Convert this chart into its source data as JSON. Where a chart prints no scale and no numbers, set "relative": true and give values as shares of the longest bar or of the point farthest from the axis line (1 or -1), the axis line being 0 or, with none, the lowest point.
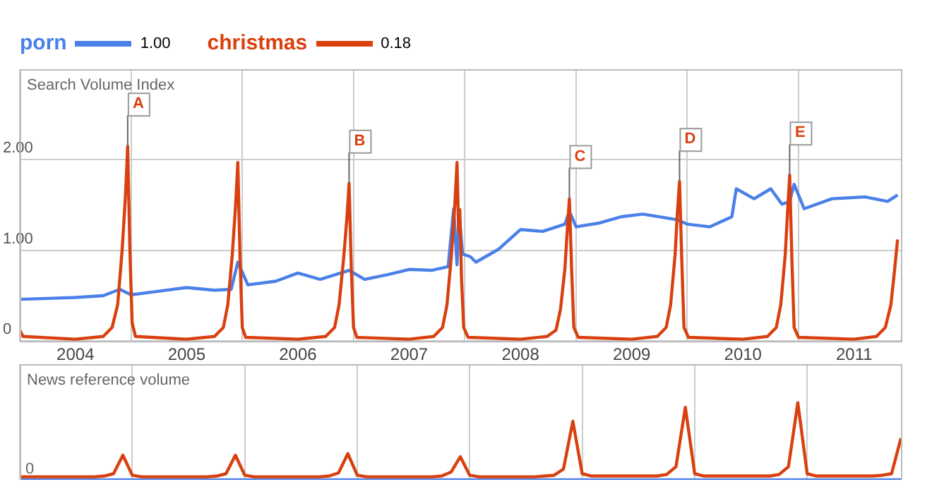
{
  "chart_data": [
    {
      "type": "line",
      "ylabel": "Search Volume Index",
      "legend": "top left",
      "grid": true,
      "marker": "none",
      "line_style": "solid",
      "xlim": [
        2004,
        2011.92
      ],
      "xticks": [
        {
          "value": 2004,
          "label": null
        },
        {
          "value": 2004.5,
          "label": "2004"
        },
        {
          "value": 2005,
          "label": null
        },
        {
          "value": 2005.5,
          "label": "2005"
        },
        {
          "value": 2006,
          "label": null
        },
        {
          "value": 2006.5,
          "label": "2006"
        },
        {
          "value": 2007,
          "label": null
        },
        {
          "value": 2007.5,
          "label": "2007"
        },
        {
          "value": 2008,
          "label": null
        },
        {
          "value": 2008.5,
          "label": "2008"
        },
        {
          "value": 2009,
          "label": null
        },
        {
          "value": 2009.5,
          "label": "2009"
        },
        {
          "value": 2010,
          "label": null
        },
        {
          "value": 2010.5,
          "label": "2010"
        },
        {
          "value": 2011,
          "label": null
        },
        {
          "value": 2011.5,
          "label": "2011"
        }
      ],
      "ylim": [
        0,
        3
      ],
      "yticks": [
        0,
        {
          "value": 1,
          "label": "1.00"
        },
        {
          "value": 2,
          "label": "2.00"
        }
      ],
      "annotations": [
        "1.00",
        "0.18",
        {
          "text": "A",
          "x": 2004.97,
          "y": 2.15
        },
        {
          "text": "B",
          "x": 2006.96,
          "y": 1.74
        },
        {
          "text": "C",
          "x": 2008.94,
          "y": 1.57
        },
        {
          "text": "D",
          "x": 2009.93,
          "y": 1.76
        },
        {
          "text": "E",
          "x": 2010.92,
          "y": 1.83
        }
      ],
      "series": [
        {
          "name": "porn",
          "color": "#4a80e8",
          "x": [
            2004,
            2004.25,
            2004.5,
            2004.75,
            2004.9,
            2005,
            2005.25,
            2005.5,
            2005.75,
            2005.9,
            2005.96,
            2006.05,
            2006.3,
            2006.5,
            2006.7,
            2006.96,
            2007.1,
            2007.3,
            2007.5,
            2007.7,
            2007.85,
            2007.9,
            2007.93,
            2007.95,
            2007.98,
            2008.05,
            2008.1,
            2008.3,
            2008.5,
            2008.7,
            2008.9,
            2008.94,
            2009,
            2009.2,
            2009.4,
            2009.6,
            2009.9,
            2010,
            2010.2,
            2010.4,
            2010.44,
            2010.6,
            2010.75,
            2010.85,
            2010.92,
            2010.96,
            2011.05,
            2011.3,
            2011.6,
            2011.8,
            2011.89
          ],
          "values": [
            0.46,
            0.47,
            0.48,
            0.5,
            0.57,
            0.51,
            0.55,
            0.59,
            0.56,
            0.57,
            0.87,
            0.62,
            0.66,
            0.75,
            0.68,
            0.78,
            0.68,
            0.73,
            0.79,
            0.78,
            0.82,
            1.46,
            0.84,
            1.4,
            0.96,
            0.93,
            0.87,
            1.01,
            1.23,
            1.21,
            1.29,
            1.43,
            1.26,
            1.3,
            1.37,
            1.4,
            1.34,
            1.29,
            1.26,
            1.37,
            1.68,
            1.57,
            1.68,
            1.51,
            1.54,
            1.73,
            1.46,
            1.57,
            1.59,
            1.54,
            1.61
          ]
        },
        {
          "name": "christmas",
          "color": "#d9400f",
          "x": [
            2004,
            2004.03,
            2004.5,
            2004.75,
            2004.83,
            2004.88,
            2004.92,
            2004.95,
            2004.97,
            2004.99,
            2005.01,
            2005.04,
            2005.5,
            2005.75,
            2005.83,
            2005.87,
            2005.91,
            2005.94,
            2005.96,
            2005.98,
            2006,
            2006.03,
            2006.5,
            2006.75,
            2006.83,
            2006.87,
            2006.91,
            2006.94,
            2006.96,
            2006.98,
            2007,
            2007.03,
            2007.5,
            2007.72,
            2007.8,
            2007.84,
            2007.88,
            2007.91,
            2007.93,
            2007.945,
            2007.955,
            2007.97,
            2007.99,
            2008.03,
            2008.5,
            2008.74,
            2008.82,
            2008.86,
            2008.9,
            2008.92,
            2008.94,
            2008.96,
            2008.98,
            2009.02,
            2009.5,
            2009.73,
            2009.81,
            2009.85,
            2009.89,
            2009.91,
            2009.93,
            2009.95,
            2009.97,
            2010.01,
            2010.5,
            2010.72,
            2010.8,
            2010.84,
            2010.88,
            2010.9,
            2010.92,
            2010.94,
            2010.96,
            2011,
            2011.5,
            2011.7,
            2011.78,
            2011.83,
            2011.86,
            2011.89
          ],
          "values": [
            0.12,
            0.05,
            0.02,
            0.05,
            0.15,
            0.4,
            1.0,
            1.6,
            2.15,
            1.0,
            0.2,
            0.05,
            0.02,
            0.05,
            0.15,
            0.4,
            0.95,
            1.5,
            1.97,
            0.9,
            0.15,
            0.04,
            0.02,
            0.05,
            0.15,
            0.4,
            0.9,
            1.35,
            1.74,
            0.8,
            0.15,
            0.04,
            0.02,
            0.05,
            0.15,
            0.4,
            0.95,
            1.5,
            1.97,
            1.2,
            1.45,
            0.7,
            0.15,
            0.04,
            0.02,
            0.05,
            0.12,
            0.35,
            0.8,
            1.2,
            1.57,
            0.8,
            0.15,
            0.04,
            0.02,
            0.05,
            0.15,
            0.4,
            0.95,
            1.4,
            1.76,
            0.9,
            0.15,
            0.04,
            0.02,
            0.05,
            0.15,
            0.4,
            0.95,
            1.4,
            1.83,
            0.9,
            0.15,
            0.04,
            0.02,
            0.05,
            0.15,
            0.4,
            0.75,
            1.12
          ]
        }
      ]
    },
    {
      "type": "line",
      "ylabel": "News reference volume",
      "relative": true,
      "legend": false,
      "grid": "x",
      "marker": "none",
      "line_style": "solid",
      "tick_labels": false,
      "categories": [
        null,
        null,
        null,
        null,
        null,
        null,
        null,
        null,
        null,
        null,
        null,
        null,
        null,
        null,
        null,
        null,
        null,
        null,
        null,
        null,
        null,
        null,
        null,
        null,
        null,
        null,
        null,
        null,
        null,
        null,
        null,
        null,
        null,
        null,
        null,
        null,
        null,
        null,
        null,
        null,
        null,
        null,
        null,
        null,
        null,
        null,
        null,
        null,
        null,
        null,
        null,
        null,
        null,
        null,
        null,
        null,
        null,
        null,
        null,
        null,
        null,
        null,
        null,
        null,
        null,
        null,
        null,
        null,
        null,
        null,
        null,
        null,
        null,
        null,
        null,
        null,
        null,
        null,
        null,
        null,
        null,
        null,
        null,
        null,
        null,
        null,
        null,
        null,
        null,
        null,
        null,
        null,
        null,
        null,
        null
      ],
      "annotations": [
        "0"
      ],
      "series": [
        {
          "color": "#4a80e8",
          "values": [
            0,
            0,
            0,
            0,
            0,
            0,
            0,
            0,
            0,
            0,
            0,
            0,
            0,
            0,
            0,
            0,
            0,
            0,
            0,
            0,
            0,
            0,
            0,
            0,
            0,
            0,
            0,
            0,
            0,
            0,
            0,
            0,
            0,
            0,
            0,
            0,
            0,
            0,
            0,
            0,
            0,
            0,
            0,
            0,
            0,
            0,
            0,
            0,
            0,
            0,
            0,
            0,
            0,
            0,
            0,
            0,
            0,
            0,
            0,
            0,
            0,
            0,
            0,
            0,
            0,
            0,
            0,
            0,
            0,
            0,
            0,
            0,
            0,
            0,
            0,
            0,
            0,
            0,
            0,
            0,
            0,
            0,
            0,
            0,
            0,
            0,
            0,
            0,
            0,
            0,
            0,
            0,
            0,
            0,
            0
          ]
        },
        {
          "color": "#d9400f",
          "values": [
            0.04,
            0.04,
            0.04,
            0.04,
            0.04,
            0.04,
            0.04,
            0.04,
            0.04,
            0.05,
            0.08,
            0.32,
            0.06,
            0.04,
            0.04,
            0.04,
            0.04,
            0.04,
            0.04,
            0.04,
            0.04,
            0.05,
            0.08,
            0.32,
            0.06,
            0.04,
            0.04,
            0.04,
            0.04,
            0.04,
            0.04,
            0.04,
            0.04,
            0.05,
            0.09,
            0.34,
            0.06,
            0.04,
            0.04,
            0.04,
            0.04,
            0.04,
            0.04,
            0.04,
            0.04,
            0.05,
            0.1,
            0.3,
            0.06,
            0.04,
            0.04,
            0.04,
            0.04,
            0.04,
            0.04,
            0.04,
            0.05,
            0.06,
            0.14,
            0.76,
            0.08,
            0.05,
            0.05,
            0.05,
            0.05,
            0.05,
            0.05,
            0.05,
            0.05,
            0.07,
            0.17,
            0.94,
            0.08,
            0.05,
            0.05,
            0.05,
            0.05,
            0.05,
            0.05,
            0.05,
            0.05,
            0.07,
            0.17,
            1,
            0.08,
            0.05,
            0.05,
            0.05,
            0.05,
            0.05,
            0.05,
            0.05,
            0.06,
            0.08,
            0.54
          ]
        }
      ]
    }
  ]
}
